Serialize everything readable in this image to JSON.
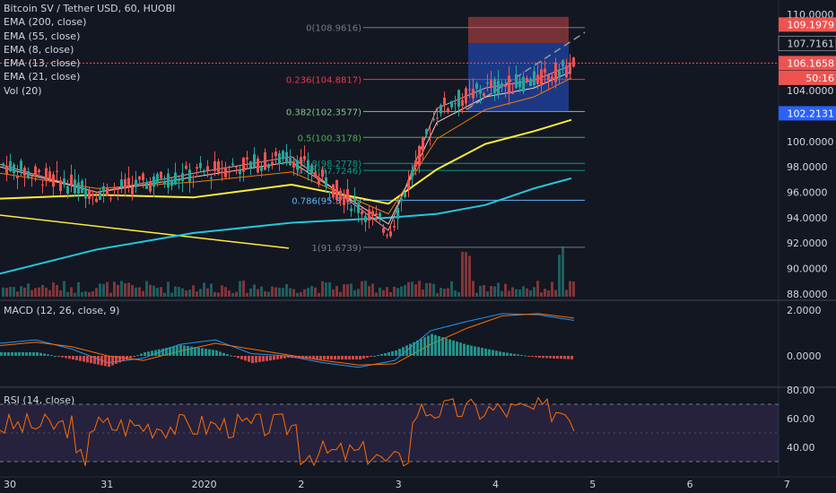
{
  "header": {
    "symbol_line": "Bitcoin SV / Tether USD, 60, HUOBI",
    "indicators": [
      "EMA (200, close)",
      "EMA (55, close)",
      "EMA (8, close)",
      "EMA (13, close)",
      "EMA (21, close)",
      "Vol (20)"
    ]
  },
  "price_axis": {
    "ticks": [
      "110.0000",
      "108.0000",
      "106.0000",
      "104.0000",
      "102.0000",
      "100.0000",
      "98.0000",
      "96.0000",
      "94.0000",
      "92.0000",
      "90.0000",
      "88.0000"
    ],
    "tick_values": [
      110,
      108,
      106,
      104,
      102,
      100,
      98,
      96,
      94,
      92,
      90,
      88
    ],
    "badges": [
      {
        "label": "109.1979",
        "value": 109.1979,
        "color": "#ef5350"
      },
      {
        "label": "107.7161",
        "value": 107.7161,
        "color": "#131722",
        "text": "#d1d4dc"
      },
      {
        "label": "106.1658",
        "value": 106.1658,
        "color": "#ef5350"
      },
      {
        "label": "50:16",
        "value": 105.0,
        "color": "#ef5350"
      },
      {
        "label": "102.2131",
        "value": 102.2131,
        "color": "#2962ff"
      }
    ]
  },
  "fib_levels": [
    {
      "label": "0(108.9616)",
      "value": 108.9616,
      "color": "#787b86"
    },
    {
      "label": "0.236(104.8817)",
      "value": 104.8817,
      "color": "#f23645"
    },
    {
      "label": "0.382(102.3577)",
      "value": 102.3577,
      "color": "#81c784"
    },
    {
      "label": "0.5(100.3178)",
      "value": 100.3178,
      "color": "#4caf50"
    },
    {
      "label": "0.618(98.2778)",
      "value": 98.2778,
      "color": "#089981"
    },
    {
      "label": "0.65(97.7246)",
      "value": 97.7246,
      "color": "#089981"
    },
    {
      "label": "0.786(95.3737)",
      "value": 95.3737,
      "color": "#64b5f6"
    },
    {
      "label": "1(91.6739)",
      "value": 91.6739,
      "color": "#787b86"
    }
  ],
  "macd": {
    "title": "MACD (12, 26, close, 9)",
    "ticks": [
      "2.0000",
      "0.0000"
    ],
    "tick_values": [
      2,
      0
    ]
  },
  "rsi": {
    "title": "RSI (14, close)",
    "ticks": [
      "80.00",
      "60.00",
      "40.00"
    ],
    "tick_values": [
      80,
      60,
      40
    ]
  },
  "time_axis": {
    "labels": [
      "30",
      "31",
      "2020",
      "2",
      "3",
      "4",
      "5",
      "6",
      "7"
    ],
    "positions": [
      0,
      1,
      2,
      3,
      4,
      5,
      6,
      7,
      8
    ]
  },
  "colors": {
    "up": "#26a69a",
    "down": "#ef5350",
    "ema200": "#26c6da",
    "ema55": "#ffeb3b",
    "ema8": "#ef9a9a",
    "ema13": "#ffccbc",
    "ema21": "#f57c00",
    "macd_line": "#2196f3",
    "signal_line": "#ff6d00",
    "rsi_line": "#ff6d00",
    "rsi_band": "#7e57c2"
  },
  "chart_data": {
    "type": "line",
    "title": "Bitcoin SV / Tether USD, 60, HUOBI",
    "xlabel": "",
    "ylabel": "",
    "x": [
      "30",
      "31",
      "2020",
      "2",
      "3",
      "3.5",
      "4",
      "4.5",
      "4.75"
    ],
    "ylim": [
      88,
      110
    ],
    "series": [
      {
        "name": "EMA (200, close)",
        "values": [
          89.6,
          91.5,
          92.8,
          93.6,
          94.0,
          94.3,
          95.0,
          96.3,
          97.1
        ]
      },
      {
        "name": "EMA (55, close)",
        "values": [
          95.5,
          95.8,
          95.6,
          96.6,
          95.1,
          97.8,
          99.8,
          100.8,
          101.7
        ]
      },
      {
        "name": "EMA (21, close)",
        "values": [
          97.5,
          96.3,
          96.8,
          97.6,
          94.3,
          100.2,
          102.5,
          103.5,
          105.0
        ]
      },
      {
        "name": "EMA (13, close)",
        "values": [
          98.0,
          96.0,
          97.2,
          98.4,
          93.5,
          101.5,
          103.5,
          104.2,
          105.5
        ]
      },
      {
        "name": "EMA (8, close)",
        "values": [
          98.2,
          96.0,
          97.5,
          98.8,
          93.0,
          102.6,
          104.2,
          104.8,
          106.0
        ]
      }
    ],
    "close_price": 106.1658,
    "macd_range": [
      -0.8,
      2.2
    ],
    "rsi_range": [
      25,
      80
    ]
  }
}
